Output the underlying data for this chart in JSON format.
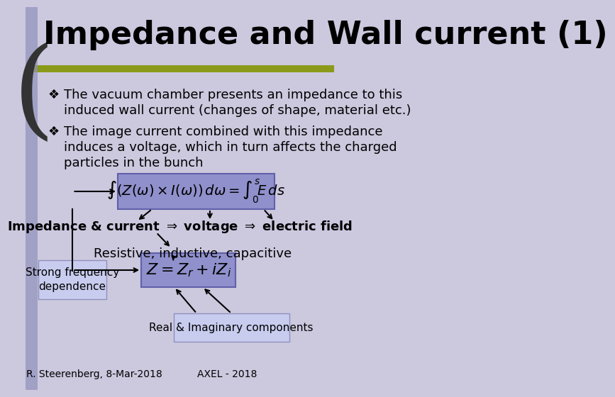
{
  "title": "Impedance and Wall current (1)",
  "slide_bg": "#ccc8de",
  "title_text_color": "#000000",
  "green_bar_color": "#8b9a1a",
  "left_bar_color": "#9090bb",
  "bullet1_line1": "The vacuum chamber presents an impedance to this",
  "bullet1_line2": "induced wall current (changes of shape, material etc.)",
  "bullet2_line1": "The image current combined with this impedance",
  "bullet2_line2": "induces a voltage, which in turn affects the charged",
  "bullet2_line3": "particles in the bunch",
  "formula1": "$\\int(Z(\\omega)\\times I(\\omega))\\,d\\omega = \\int_0^s\\!E\\,ds$",
  "formula2": "$Z = Z_r + iZ_i$",
  "label_imp": "Impedance & current $\\Rightarrow$ voltage $\\Rightarrow$ electric field",
  "label_res": "Resistive, inductive, capacitive",
  "label_strong": "Strong frequency\ndependence",
  "label_real": "Real & Imaginary components",
  "footer_left": "R. Steerenberg, 8-Mar-2018",
  "footer_right": "AXEL - 2018",
  "formula_bg": "#9090cc",
  "formula_edge": "#6060aa",
  "label_bg": "#c8ccee",
  "label_edge": "#9090bb",
  "arrow_color": "#000000",
  "text_color": "#000000"
}
